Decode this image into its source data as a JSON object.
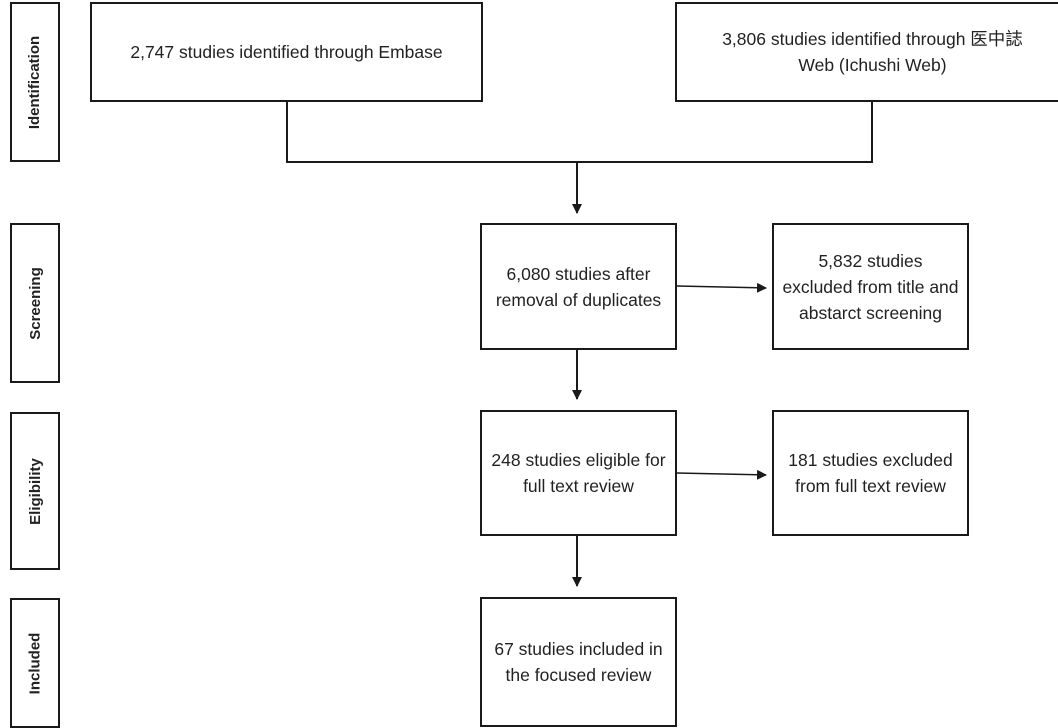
{
  "stages": {
    "identification": "Identification",
    "screening": "Screening",
    "eligibility": "Eligibility",
    "included": "Included"
  },
  "boxes": {
    "embase": "2,747 studies identified through Embase",
    "ichushi": "3,806 studies identified through 医中誌Web (Ichushi Web)",
    "after_duplicates": "6,080 studies after removal of duplicates",
    "excluded_title_abstract": "5,832 studies excluded from title and abstarct screening",
    "eligible_full_text": "248 studies eligible for full text review",
    "excluded_full_text": "181 studies excluded from full text review",
    "included_focused": "67 studies included in the focused review"
  }
}
